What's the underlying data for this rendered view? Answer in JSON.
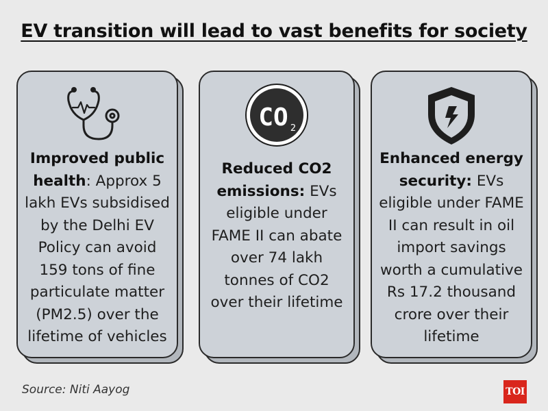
{
  "title": "EV transition will lead to vast benefits for society",
  "cards": [
    {
      "icon": "stethoscope-icon",
      "heading": "Improved public health",
      "body": ": Approx 5 lakh EVs subsidised by the Delhi EV Policy can avoid 159 tons of fine particulate matter (PM2.5) over the lifetime of vehicles"
    },
    {
      "icon": "co2-icon",
      "icon_text": "CO",
      "icon_sub": "2",
      "heading": "Reduced CO2 emissions:",
      "body": " EVs eligible under FAME II can abate over 74 lakh tonnes of CO2 over their lifetime"
    },
    {
      "icon": "energy-shield-icon",
      "heading": "Enhanced energy security:",
      "body": " EVs eligible under FAME II can result in oil import savings worth a cumulative Rs 17.2 thousand crore over their lifetime"
    }
  ],
  "source": "Source: Niti Aayog",
  "logo_text": "TOI"
}
